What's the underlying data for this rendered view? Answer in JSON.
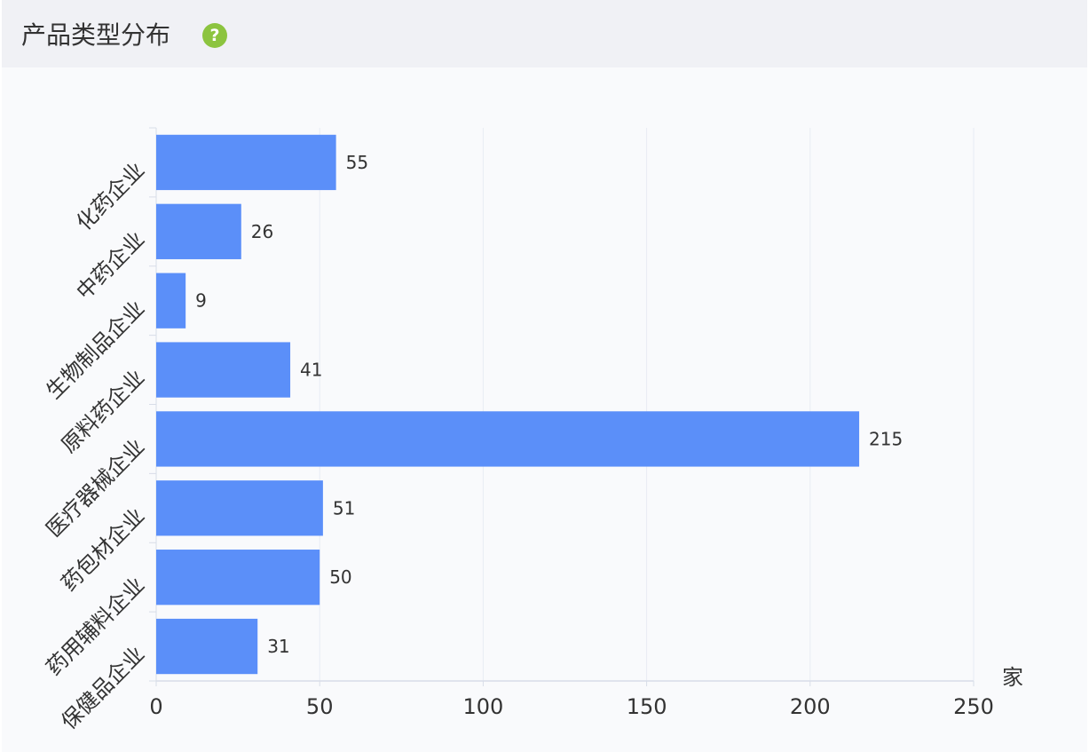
{
  "header": {
    "title": "产品类型分布",
    "help_icon": "help-icon",
    "help_glyph": "?"
  },
  "colors": {
    "bar": "#5b8ff9",
    "help_icon_bg": "#8cc43f",
    "help_icon_fg": "#ffffff",
    "grid": "#e8ecf3",
    "axis": "#d8dde8",
    "label": "#333333"
  },
  "chart_data": {
    "type": "bar",
    "orientation": "horizontal",
    "categories": [
      "化药企业",
      "中药企业",
      "生物制品企业",
      "原料药企业",
      "医疗器械企业",
      "药包材企业",
      "药用辅料企业",
      "保健品企业"
    ],
    "values": [
      55,
      26,
      9,
      41,
      215,
      51,
      50,
      31
    ],
    "xlim": [
      0,
      250
    ],
    "xticks": [
      0,
      50,
      100,
      150,
      200,
      250
    ],
    "unit_label": "家",
    "grid": true,
    "data_labels": true
  }
}
